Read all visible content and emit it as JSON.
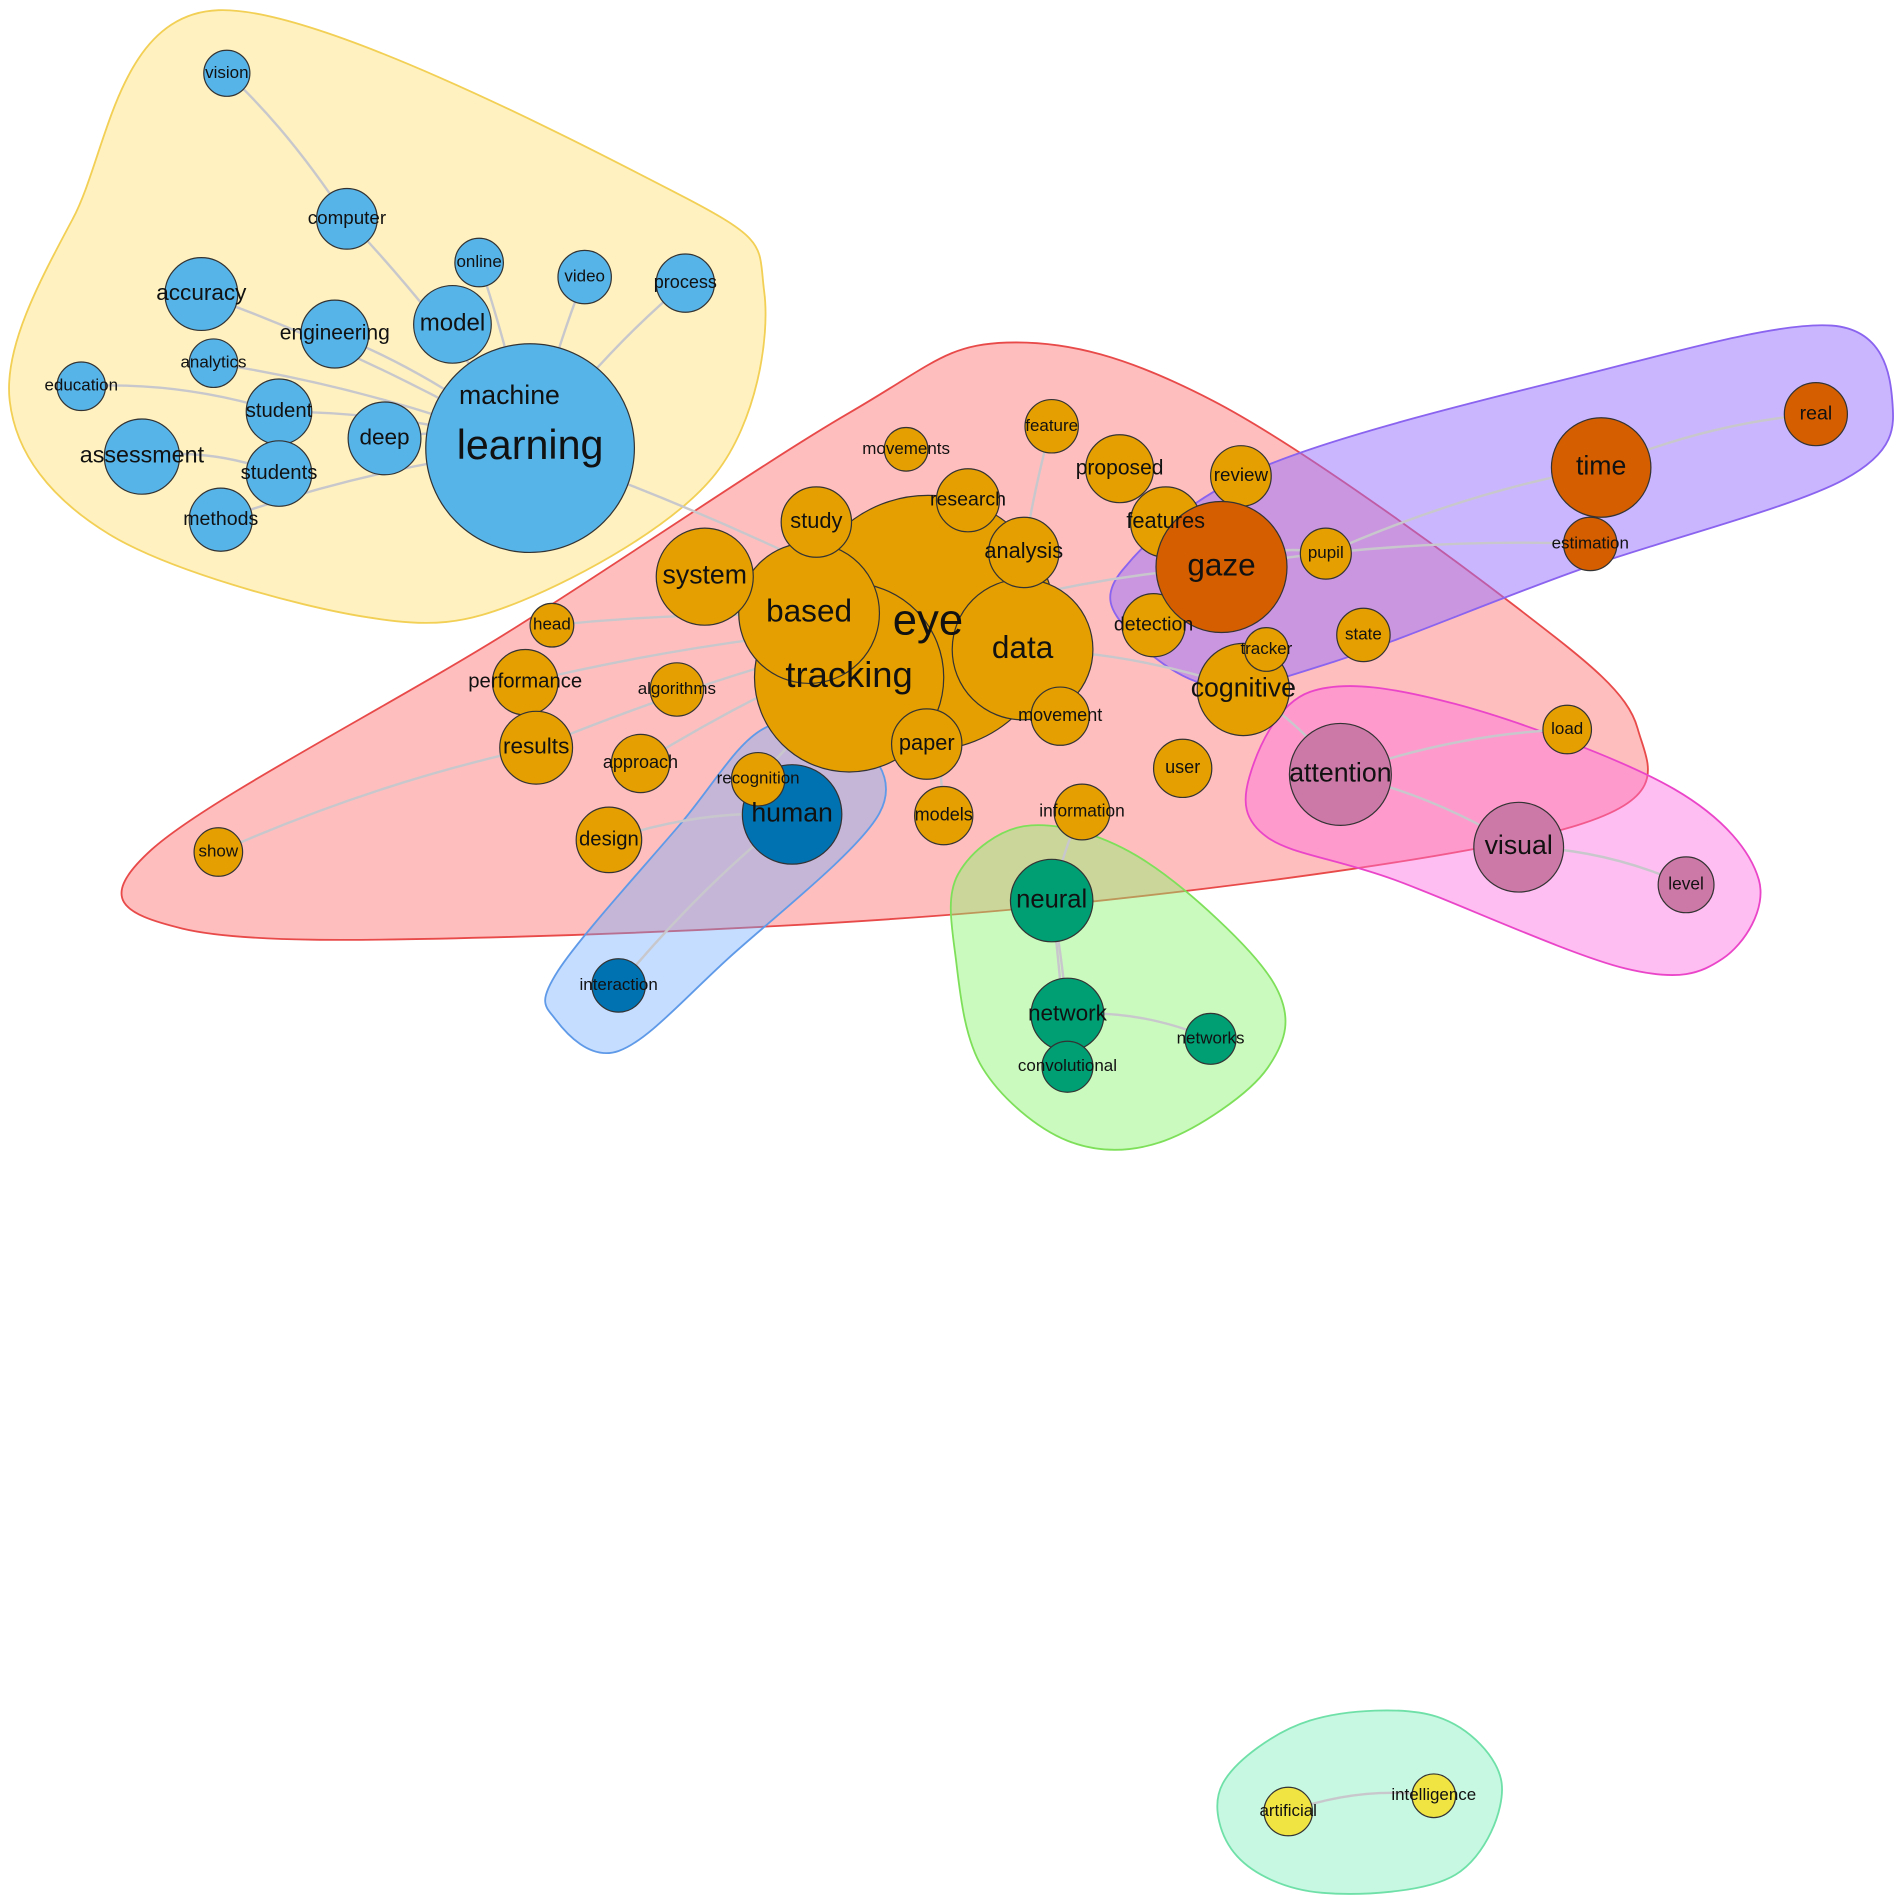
{
  "nodes": [
    {
      "label": "vision"
    },
    {
      "label": "computer"
    },
    {
      "label": "online"
    },
    {
      "label": "video"
    },
    {
      "label": "process"
    },
    {
      "label": "accuracy"
    },
    {
      "label": "model"
    },
    {
      "label": "engineering"
    },
    {
      "label": "analytics"
    },
    {
      "label": "education"
    },
    {
      "label": "student"
    },
    {
      "label": "deep"
    },
    {
      "label": "assessment"
    },
    {
      "label": "students"
    },
    {
      "label": "methods"
    },
    {
      "label": "machine"
    },
    {
      "label": "learning"
    },
    {
      "label": "eye"
    },
    {
      "label": "data"
    },
    {
      "label": "tracking"
    },
    {
      "label": "based"
    },
    {
      "label": "system"
    },
    {
      "label": "study"
    },
    {
      "label": "movements"
    },
    {
      "label": "research"
    },
    {
      "label": "feature"
    },
    {
      "label": "proposed"
    },
    {
      "label": "analysis"
    },
    {
      "label": "features"
    },
    {
      "label": "head"
    },
    {
      "label": "performance"
    },
    {
      "label": "algorithms"
    },
    {
      "label": "results"
    },
    {
      "label": "approach"
    },
    {
      "label": "paper"
    },
    {
      "label": "movement"
    },
    {
      "label": "detection"
    },
    {
      "label": "cognitive"
    },
    {
      "label": "user"
    },
    {
      "label": "models"
    },
    {
      "label": "information"
    },
    {
      "label": "design"
    },
    {
      "label": "show"
    },
    {
      "label": "review"
    },
    {
      "label": "pupil"
    },
    {
      "label": "state"
    },
    {
      "label": "tracker"
    },
    {
      "label": "load"
    },
    {
      "label": "gaze"
    },
    {
      "label": "time"
    },
    {
      "label": "real"
    },
    {
      "label": "estimation"
    },
    {
      "label": "attention"
    },
    {
      "label": "visual"
    },
    {
      "label": "level"
    },
    {
      "label": "human"
    },
    {
      "label": "interaction"
    },
    {
      "label": "recognition"
    },
    {
      "label": "neural"
    },
    {
      "label": "network"
    },
    {
      "label": "convolutional"
    },
    {
      "label": "networks"
    },
    {
      "label": "artificial"
    },
    {
      "label": "intelligence"
    }
  ]
}
